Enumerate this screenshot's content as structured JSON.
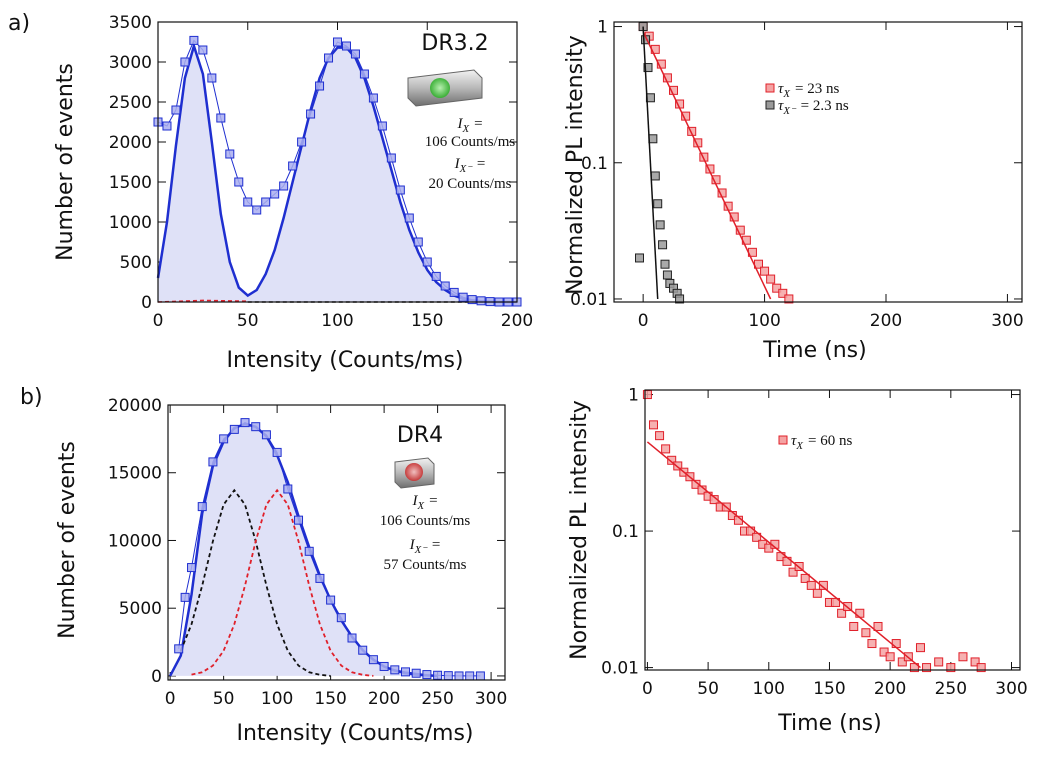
{
  "panel_labels": [
    "a)",
    "b)"
  ],
  "chart_data": [
    {
      "type": "line",
      "xlabel": "Intensity (Counts/ms)",
      "ylabel": "Number of events",
      "xlim": [
        0,
        200
      ],
      "ylim": [
        0,
        3500
      ],
      "xticks": [
        0,
        50,
        100,
        150,
        200
      ],
      "yticks": [
        0,
        500,
        1000,
        1500,
        2000,
        2500,
        3000,
        3500
      ],
      "annotations": [
        {
          "text": "DR3.2"
        },
        {
          "symbol": "I",
          "subscript": "X",
          "text": "="
        },
        {
          "text": "106 Counts/ms"
        },
        {
          "symbol": "I",
          "subscript": "X⁻",
          "text": "="
        },
        {
          "text": "20 Counts/ms"
        }
      ],
      "series": [
        {
          "color": "#1f2fd0",
          "line": "solid",
          "width": 2.5,
          "fill": "#dfe1f7",
          "x": [
            0,
            5,
            10,
            15,
            20,
            25,
            30,
            35,
            40,
            45,
            50,
            55,
            60,
            65,
            70,
            75,
            80,
            85,
            90,
            95,
            100,
            105,
            110,
            115,
            120,
            125,
            130,
            135,
            140,
            145,
            150,
            155,
            160,
            165,
            170,
            175,
            180,
            190,
            200
          ],
          "values": [
            300,
            1000,
            1950,
            2800,
            3200,
            2850,
            2000,
            1100,
            500,
            180,
            80,
            150,
            350,
            650,
            1050,
            1500,
            1950,
            2400,
            2800,
            3050,
            3180,
            3180,
            3050,
            2800,
            2450,
            2050,
            1650,
            1250,
            900,
            620,
            400,
            250,
            150,
            80,
            40,
            20,
            10,
            0,
            0
          ]
        },
        {
          "color": "#e0202a",
          "line": "dashed",
          "width": 1.5,
          "x": [
            0,
            25,
            50
          ],
          "values": [
            0,
            20,
            10
          ]
        },
        {
          "color": "#111111",
          "line": "dashed",
          "width": 1.5,
          "x": [
            50,
            125,
            200
          ],
          "values": [
            0,
            0,
            0
          ]
        },
        {
          "color": "#1f2fd0",
          "marker_fill": "#a9aef0",
          "marker": "square",
          "line": "solid",
          "width": 1,
          "x": [
            0,
            5,
            10,
            15,
            20,
            25,
            30,
            35,
            40,
            45,
            50,
            55,
            60,
            65,
            70,
            75,
            80,
            85,
            90,
            95,
            100,
            105,
            110,
            115,
            120,
            125,
            130,
            135,
            140,
            145,
            150,
            155,
            160,
            165,
            170,
            175,
            180,
            185,
            190,
            195,
            200
          ],
          "values": [
            2250,
            2200,
            2400,
            3000,
            3270,
            3150,
            2800,
            2300,
            1850,
            1500,
            1250,
            1150,
            1250,
            1350,
            1450,
            1700,
            2000,
            2350,
            2700,
            3050,
            3250,
            3200,
            3100,
            2850,
            2550,
            2200,
            1800,
            1400,
            1050,
            750,
            500,
            320,
            200,
            120,
            60,
            30,
            15,
            5,
            0,
            0,
            0
          ]
        }
      ]
    },
    {
      "type": "scatter",
      "xlabel": "Time (ns)",
      "ylabel": "Normalized PL intensity",
      "yscale": "log",
      "xlim": [
        -24,
        312
      ],
      "ylim": [
        0.0095,
        1.08
      ],
      "xticks": [
        0,
        100,
        200,
        300
      ],
      "yticks": [
        0.01,
        0.1,
        1
      ],
      "legend": "upper center",
      "series": [
        {
          "color": "#e0202a",
          "marker_fill": "#f4a3a3",
          "marker": "square",
          "line": "none",
          "label": {
            "symbol": "τ",
            "subscript": "X",
            "text": "= 23 ns"
          },
          "x": [
            0,
            5,
            10,
            15,
            20,
            25,
            30,
            35,
            40,
            45,
            50,
            55,
            60,
            65,
            70,
            75,
            80,
            85,
            90,
            95,
            100,
            105,
            110,
            115,
            120
          ],
          "values": [
            1,
            0.85,
            0.68,
            0.53,
            0.42,
            0.34,
            0.27,
            0.22,
            0.17,
            0.14,
            0.11,
            0.09,
            0.075,
            0.06,
            0.048,
            0.04,
            0.032,
            0.027,
            0.022,
            0.018,
            0.016,
            0.014,
            0.012,
            0.011,
            0.01
          ]
        },
        {
          "color": "#222222",
          "marker_fill": "#9a9a9a",
          "marker": "square",
          "line": "none",
          "label": {
            "symbol": "τ",
            "subscript": "X⁻",
            "text": "= 2.3 ns"
          },
          "x": [
            -3,
            0,
            2,
            4,
            6,
            8,
            10,
            12,
            14,
            16,
            18,
            20,
            22,
            25,
            28,
            30
          ],
          "values": [
            0.02,
            1,
            0.8,
            0.5,
            0.3,
            0.15,
            0.08,
            0.05,
            0.035,
            0.025,
            0.018,
            0.015,
            0.013,
            0.012,
            0.011,
            0.01
          ]
        },
        {
          "color": "#e0202a",
          "line": "solid",
          "width": 1.5,
          "x": [
            0,
            105
          ],
          "values": [
            0.92,
            0.01
          ]
        },
        {
          "color": "#111111",
          "line": "solid",
          "width": 1.5,
          "x": [
            0,
            12
          ],
          "values": [
            1,
            0.01
          ]
        }
      ]
    },
    {
      "type": "line",
      "xlabel": "Intensity (Counts/ms)",
      "ylabel": "Number of events",
      "xlim": [
        -2,
        313
      ],
      "ylim": [
        -300,
        20000
      ],
      "xticks": [
        0,
        50,
        100,
        150,
        200,
        250,
        300
      ],
      "yticks": [
        0,
        5000,
        10000,
        15000,
        20000
      ],
      "annotations": [
        {
          "text": "DR4"
        },
        {
          "symbol": "I",
          "subscript": "X",
          "text": "="
        },
        {
          "text": "106 Counts/ms"
        },
        {
          "symbol": "I",
          "subscript": "X⁻",
          "text": "="
        },
        {
          "text": "57 Counts/ms"
        }
      ],
      "series": [
        {
          "color": "#1f2fd0",
          "line": "solid",
          "width": 2.5,
          "fill": "#dfe1f7",
          "x": [
            0,
            10,
            20,
            30,
            40,
            50,
            60,
            70,
            80,
            90,
            100,
            110,
            120,
            130,
            140,
            150,
            160,
            170,
            180,
            190,
            200,
            210,
            220,
            230,
            240,
            250
          ],
          "values": [
            0,
            1500,
            6000,
            12000,
            15500,
            17300,
            18300,
            18600,
            18400,
            17700,
            16300,
            14300,
            11800,
            9500,
            7400,
            5600,
            4100,
            2900,
            1900,
            1200,
            700,
            400,
            200,
            100,
            40,
            0
          ]
        },
        {
          "color": "#111111",
          "line": "dashed",
          "width": 1.8,
          "x": [
            10,
            20,
            30,
            40,
            50,
            60,
            70,
            80,
            90,
            100,
            110,
            120,
            130,
            140,
            150
          ],
          "values": [
            1854,
            3808,
            6666,
            9948,
            12647,
            13700,
            12647,
            9948,
            6666,
            3808,
            1854,
            766,
            272,
            82,
            0
          ]
        },
        {
          "color": "#e0202a",
          "line": "dashed",
          "width": 1.8,
          "x": [
            20,
            30,
            40,
            50,
            60,
            70,
            80,
            90,
            100,
            110,
            120,
            130,
            140,
            150,
            160,
            170,
            180,
            190
          ],
          "values": [
            100,
            272,
            766,
            1854,
            3808,
            6666,
            9948,
            12647,
            13700,
            12647,
            9948,
            6666,
            3808,
            1854,
            766,
            272,
            82,
            0
          ]
        },
        {
          "color": "#1f2fd0",
          "marker_fill": "#a9aef0",
          "marker": "square",
          "line": "solid",
          "width": 1,
          "x": [
            8,
            14,
            20,
            30,
            40,
            50,
            60,
            70,
            80,
            90,
            100,
            110,
            120,
            130,
            140,
            150,
            160,
            170,
            180,
            190,
            200,
            210,
            220,
            230,
            240,
            250,
            260,
            270,
            280,
            290
          ],
          "values": [
            2000,
            5800,
            8000,
            12500,
            15800,
            17500,
            18200,
            18700,
            18400,
            17800,
            16500,
            13800,
            11500,
            9200,
            7200,
            5600,
            4300,
            2800,
            1900,
            1200,
            700,
            450,
            300,
            200,
            100,
            50,
            20,
            0,
            0,
            0
          ]
        }
      ]
    },
    {
      "type": "scatter",
      "xlabel": "Time (ns)",
      "ylabel": "Normalized PL intensity",
      "yscale": "log",
      "xlim": [
        -2,
        307
      ],
      "ylim": [
        0.0096,
        1.08
      ],
      "xticks": [
        0,
        50,
        100,
        150,
        200,
        250,
        300
      ],
      "yticks": [
        0.01,
        0.1,
        1
      ],
      "legend": "upper center",
      "series": [
        {
          "color": "#e0202a",
          "marker_fill": "#f4a3a3",
          "marker": "square",
          "line": "none",
          "label": {
            "symbol": "τ",
            "subscript": "X",
            "text": "= 60 ns"
          },
          "x": [
            0,
            5,
            10,
            15,
            20,
            25,
            30,
            35,
            40,
            45,
            50,
            55,
            60,
            65,
            70,
            75,
            80,
            85,
            90,
            95,
            100,
            105,
            110,
            115,
            120,
            125,
            130,
            135,
            140,
            145,
            150,
            155,
            160,
            165,
            170,
            175,
            180,
            185,
            190,
            195,
            200,
            205,
            210,
            215,
            220,
            225,
            230,
            240,
            250,
            260,
            270,
            275
          ],
          "values": [
            1,
            0.6,
            0.5,
            0.4,
            0.33,
            0.3,
            0.27,
            0.25,
            0.22,
            0.2,
            0.18,
            0.17,
            0.15,
            0.15,
            0.13,
            0.12,
            0.1,
            0.1,
            0.09,
            0.08,
            0.075,
            0.08,
            0.065,
            0.06,
            0.05,
            0.055,
            0.045,
            0.04,
            0.035,
            0.04,
            0.03,
            0.03,
            0.025,
            0.028,
            0.02,
            0.025,
            0.018,
            0.015,
            0.02,
            0.013,
            0.012,
            0.015,
            0.011,
            0.012,
            0.01,
            0.014,
            0.01,
            0.011,
            0.01,
            0.012,
            0.011,
            0.01
          ]
        },
        {
          "color": "#e0202a",
          "line": "solid",
          "width": 1.5,
          "x": [
            0,
            225
          ],
          "values": [
            0.45,
            0.01
          ]
        }
      ]
    }
  ]
}
